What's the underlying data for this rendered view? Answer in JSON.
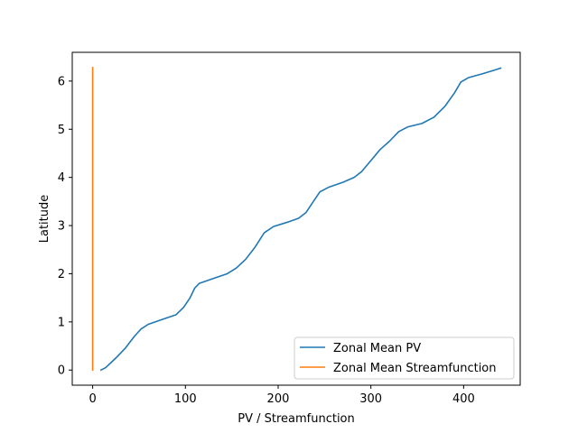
{
  "chart_data": {
    "type": "line",
    "title": "",
    "xlabel": "PV / Streamfunction",
    "ylabel": "Latitude",
    "xlim": [
      -22,
      461
    ],
    "ylim": [
      -0.314,
      6.597
    ],
    "xticks": [
      0,
      100,
      200,
      300,
      400
    ],
    "yticks": [
      0,
      1,
      2,
      3,
      4,
      5,
      6
    ],
    "grid": false,
    "legend": {
      "placement": "lower right"
    },
    "series": [
      {
        "name": "Zonal Mean PV",
        "color": "#1f77b4",
        "points": [
          [
            9,
            0.0
          ],
          [
            14,
            0.05
          ],
          [
            25,
            0.25
          ],
          [
            35,
            0.45
          ],
          [
            45,
            0.7
          ],
          [
            52,
            0.85
          ],
          [
            60,
            0.95
          ],
          [
            75,
            1.05
          ],
          [
            90,
            1.15
          ],
          [
            98,
            1.3
          ],
          [
            105,
            1.5
          ],
          [
            110,
            1.7
          ],
          [
            115,
            1.8
          ],
          [
            130,
            1.9
          ],
          [
            145,
            2.0
          ],
          [
            155,
            2.12
          ],
          [
            165,
            2.3
          ],
          [
            175,
            2.55
          ],
          [
            185,
            2.85
          ],
          [
            195,
            2.98
          ],
          [
            210,
            3.07
          ],
          [
            222,
            3.15
          ],
          [
            230,
            3.27
          ],
          [
            238,
            3.5
          ],
          [
            245,
            3.7
          ],
          [
            255,
            3.8
          ],
          [
            270,
            3.9
          ],
          [
            282,
            4.0
          ],
          [
            290,
            4.12
          ],
          [
            300,
            4.35
          ],
          [
            310,
            4.58
          ],
          [
            320,
            4.75
          ],
          [
            330,
            4.95
          ],
          [
            340,
            5.05
          ],
          [
            355,
            5.12
          ],
          [
            368,
            5.25
          ],
          [
            380,
            5.48
          ],
          [
            390,
            5.75
          ],
          [
            397,
            5.98
          ],
          [
            405,
            6.07
          ],
          [
            420,
            6.15
          ],
          [
            432,
            6.22
          ],
          [
            440,
            6.27
          ]
        ]
      },
      {
        "name": "Zonal Mean Streamfunction",
        "color": "#ff7f0e",
        "points": [
          [
            0,
            0.0
          ],
          [
            0,
            6.283
          ]
        ]
      }
    ]
  }
}
